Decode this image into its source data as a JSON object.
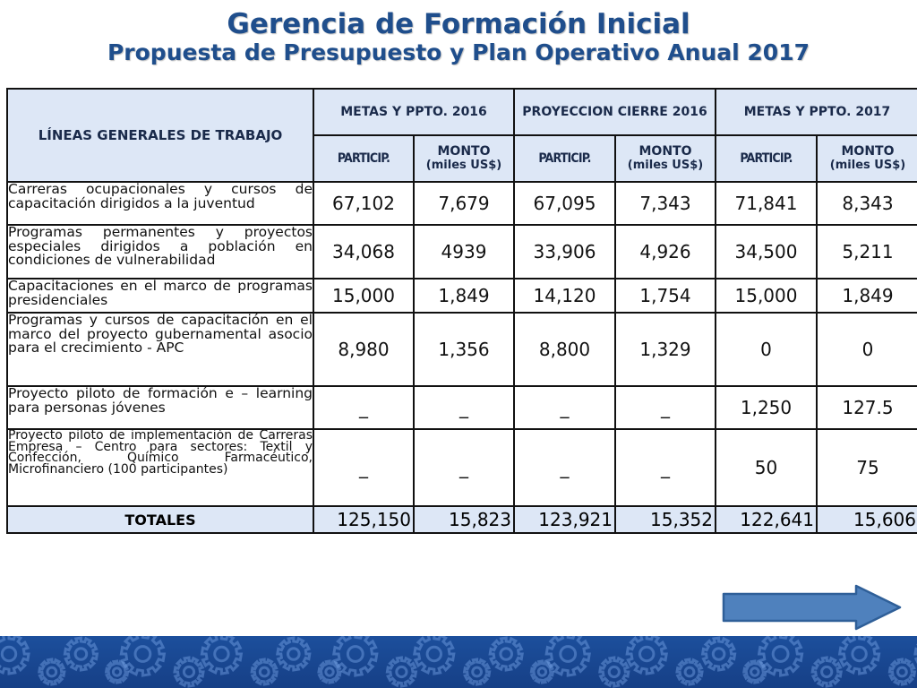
{
  "slide": {
    "title": "Gerencia de Formación Inicial",
    "subtitle": "Propuesta de Presupuesto y Plan Operativo Anual 2017"
  },
  "table": {
    "header": {
      "lines_title": "LÍNEAS GENERALES DE TRABAJO",
      "groups": [
        "METAS Y PPTO. 2016",
        "PROYECCION CIERRE 2016",
        "METAS Y PPTO. 2017"
      ],
      "particip": "PARTICIP.",
      "monto": "MONTO",
      "monto_unit": "(miles US$)"
    },
    "rows": [
      {
        "description": "Carreras ocupacionales y cursos de capacitación dirigidos a la juventud",
        "values": [
          "67,102",
          "7,679",
          "67,095",
          "7,343",
          "71,841",
          "8,343"
        ]
      },
      {
        "description": "Programas permanentes y proyectos especiales dirigidos a población en condiciones de vulnerabilidad",
        "values": [
          "34,068",
          "4939",
          "33,906",
          "4,926",
          "34,500",
          "5,211"
        ]
      },
      {
        "description": "Capacitaciones en el marco de programas presidenciales",
        "values": [
          "15,000",
          "1,849",
          "14,120",
          "1,754",
          "15,000",
          "1,849"
        ]
      },
      {
        "description": "Programas y cursos de capacitación en el marco del proyecto gubernamental asocio para el crecimiento - APC",
        "values": [
          "8,980",
          "1,356",
          "8,800",
          "1,329",
          "0",
          "0"
        ]
      },
      {
        "description": "Proyecto piloto de formación e – learning para personas jóvenes",
        "values": [
          "_",
          "_",
          "_",
          "_",
          "1,250",
          "127.5"
        ]
      },
      {
        "description": "Proyecto piloto de implementación de Carreras Empresa – Centro para sectores: Textil y Confección, Químico Farmacéutico, Microfinanciero (100 participantes)",
        "values": [
          "_",
          "_",
          "_",
          "_",
          "50",
          "75"
        ]
      }
    ],
    "totals": {
      "label": "TOTALES",
      "values": [
        "125,150",
        "15,823",
        "123,921",
        "15,352",
        "122,641",
        "15,606"
      ]
    }
  },
  "navigation": {
    "icon": "right-arrow-icon"
  },
  "footer": {
    "pattern_icon": "gear-icon"
  },
  "colors": {
    "title": "#1f4e8c",
    "header_fill": "#dde7f6",
    "arrow_fill": "#4f81bd",
    "arrow_stroke": "#2f5f98",
    "footer_band": "#1c4f9c"
  }
}
